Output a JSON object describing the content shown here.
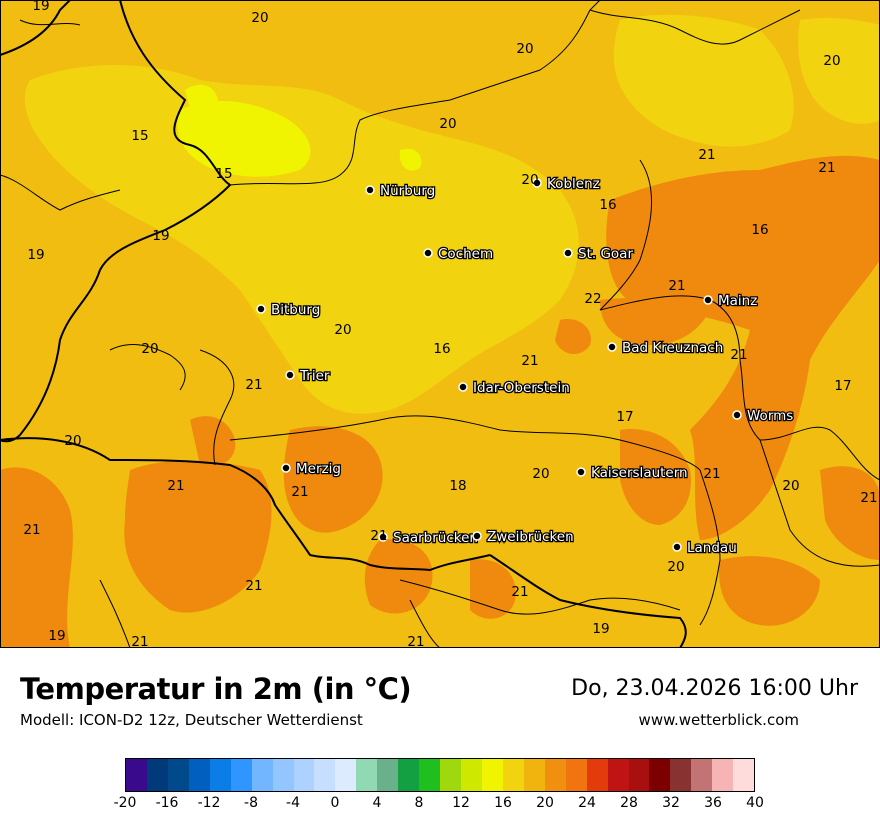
{
  "title": "Temperatur in 2m (in °C)",
  "model": "Modell: ICON-D2 12z, Deutscher Wetterdienst",
  "datetime": "Do, 23.04.2026 16:00 Uhr",
  "website": "www.wetterblick.com",
  "cities": [
    {
      "name": "Nürburg"
    },
    {
      "name": "Koblenz"
    },
    {
      "name": "Cochem"
    },
    {
      "name": "St. Goar"
    },
    {
      "name": "Bitburg"
    },
    {
      "name": "Mainz"
    },
    {
      "name": "Bad Kreuznach"
    },
    {
      "name": "Trier"
    },
    {
      "name": "Idar-Oberstein"
    },
    {
      "name": "Worms"
    },
    {
      "name": "Merzig"
    },
    {
      "name": "Kaiserslautern"
    },
    {
      "name": "Saarbrücken"
    },
    {
      "name": "Zweibrücken"
    },
    {
      "name": "Landau"
    }
  ],
  "values": [
    "19",
    "20",
    "20",
    "20",
    "15",
    "20",
    "21",
    "15",
    "21",
    "19",
    "20",
    "16",
    "19",
    "16",
    "22",
    "21",
    "20",
    "16",
    "21",
    "21",
    "17",
    "20",
    "21",
    "17",
    "20",
    "21",
    "21",
    "18",
    "20",
    "21",
    "21",
    "20",
    "21",
    "21",
    "21",
    "21",
    "20",
    "21",
    "19",
    "21",
    "19"
  ],
  "legend": {
    "colors": [
      "#3a0a8c",
      "#003a7a",
      "#004a8c",
      "#005fbf",
      "#0a7ee6",
      "#2f96ff",
      "#72b6ff",
      "#93c6ff",
      "#aed2ff",
      "#c6dfff",
      "#ddebff",
      "#90d9b3",
      "#6ab08a",
      "#12a043",
      "#1fbf1f",
      "#9fd80d",
      "#cfe800",
      "#f1f400",
      "#f1d30f",
      "#f1b40f",
      "#f0900e",
      "#f07410",
      "#e43b0c",
      "#c01414",
      "#a80f0f",
      "#7d0000",
      "#883232",
      "#c27474",
      "#f6b4b4",
      "#ffdcdc"
    ],
    "tick_labels": [
      "-20",
      "-16",
      "-12",
      "-8",
      "-4",
      "0",
      "4",
      "8",
      "12",
      "16",
      "20",
      "24",
      "28",
      "32",
      "36",
      "40"
    ]
  }
}
